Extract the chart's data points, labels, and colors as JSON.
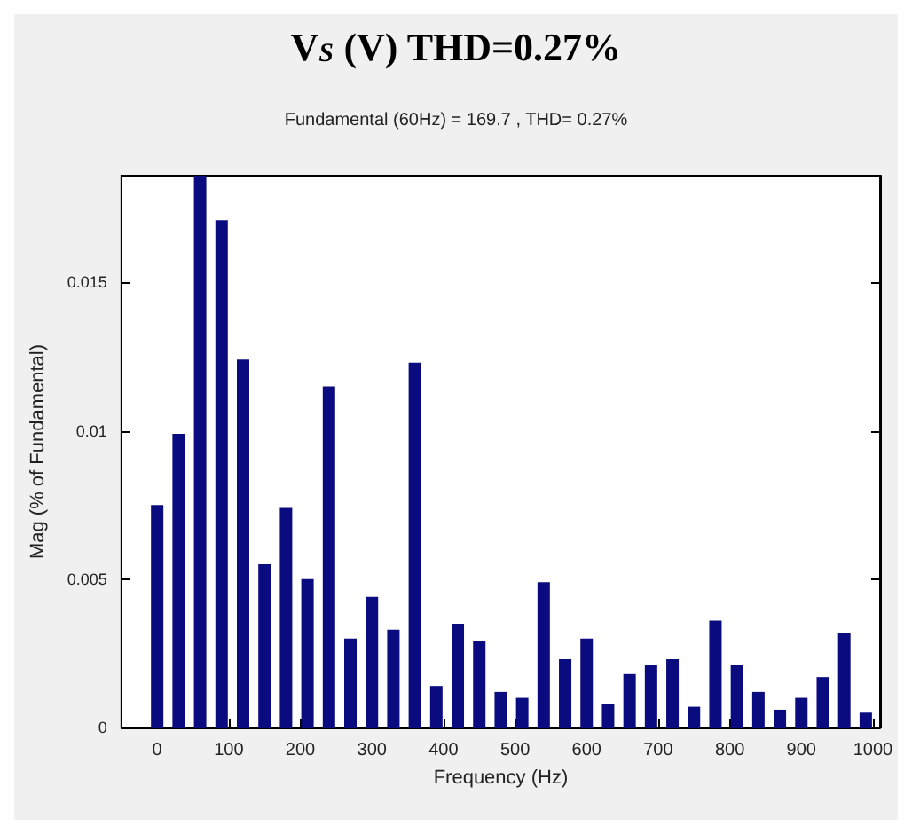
{
  "chart_data": {
    "type": "bar",
    "title": "V$_{S}$ (V) THD=0.27%",
    "subtitle": "Fundamental (60Hz) = 169.7 , THD= 0.27%",
    "xlabel": "Frequency (Hz)",
    "ylabel": "Mag (% of Fundamental)",
    "x": [
      0,
      30,
      60,
      90,
      120,
      150,
      180,
      210,
      240,
      270,
      300,
      330,
      360,
      390,
      420,
      450,
      480,
      510,
      540,
      570,
      600,
      630,
      660,
      690,
      720,
      750,
      780,
      810,
      840,
      870,
      900,
      930,
      960,
      990
    ],
    "values": [
      0.0075,
      0.0099,
      0.0186,
      0.0171,
      0.0124,
      0.0055,
      0.0074,
      0.005,
      0.0115,
      0.003,
      0.0044,
      0.0033,
      0.0123,
      0.0014,
      0.0035,
      0.0029,
      0.0012,
      0.001,
      0.0049,
      0.0023,
      0.003,
      0.0008,
      0.0018,
      0.0021,
      0.0023,
      0.0007,
      0.0036,
      0.0021,
      0.0012,
      0.0006,
      0.001,
      0.0017,
      0.0032,
      0.0005
    ],
    "color": "#0b0b80",
    "xlim": [
      -50,
      1010
    ],
    "xticks": [
      0,
      100,
      200,
      300,
      400,
      500,
      600,
      700,
      800,
      900,
      1000
    ],
    "ylim": [
      0,
      0.0186
    ],
    "yticks": [
      0,
      0.005,
      0.01,
      0.015
    ],
    "grid": false
  }
}
